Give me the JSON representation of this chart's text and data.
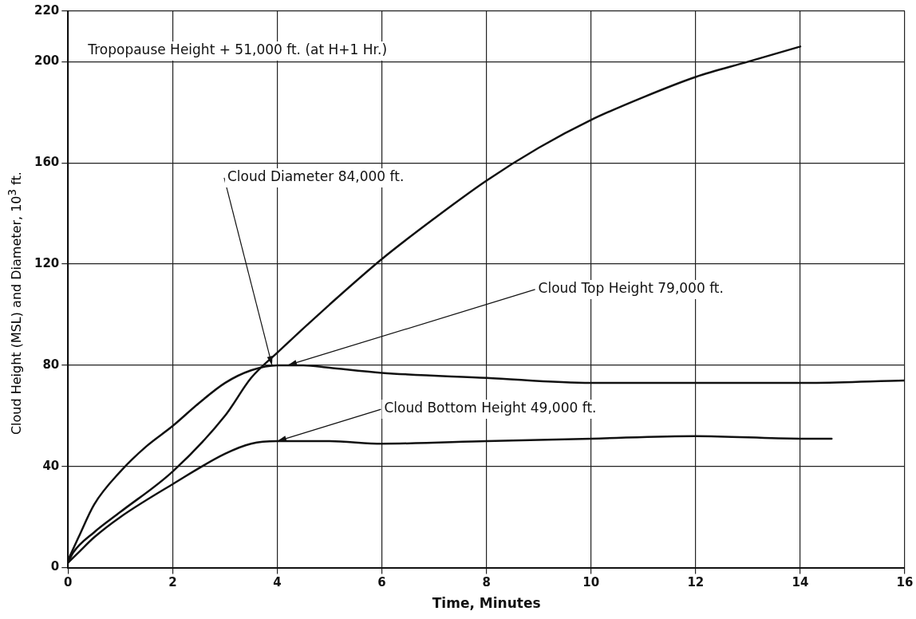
{
  "chart_data": {
    "type": "line",
    "xlabel": "Time, Minutes",
    "ylabel": "Cloud Height (MSL) and Diameter, 10$^{3}$ ft.",
    "xlim": [
      0,
      16
    ],
    "xticks": [
      0,
      2,
      4,
      6,
      8,
      10,
      12,
      14,
      16
    ],
    "ylim": [
      0,
      220
    ],
    "yticks": [
      0,
      40,
      80,
      120,
      160,
      200,
      220
    ],
    "grid": true,
    "legend": false,
    "marker": "none",
    "line_style": "solid",
    "series": [
      {
        "color": "#111111",
        "x": [
          0,
          0.1,
          0.5,
          1,
          2,
          3,
          3.5,
          4,
          5,
          6,
          7,
          8,
          9,
          10,
          11,
          12,
          13,
          14
        ],
        "values": [
          2,
          6,
          14,
          22,
          38,
          60,
          75,
          85,
          104,
          122,
          138,
          153,
          166,
          177,
          186,
          194,
          200,
          206
        ]
      },
      {
        "color": "#111111",
        "x": [
          0,
          0.2,
          0.5,
          1,
          1.5,
          2,
          2.5,
          3,
          3.5,
          4,
          4.5,
          5,
          6,
          8,
          10,
          12,
          14,
          16
        ],
        "values": [
          3,
          12,
          25,
          38,
          48,
          56,
          65,
          73,
          78,
          80,
          80,
          79,
          77,
          75,
          73,
          73,
          73,
          74
        ]
      },
      {
        "color": "#111111",
        "x": [
          0,
          0.2,
          0.5,
          1,
          2,
          3,
          3.5,
          4,
          5,
          6,
          8,
          10,
          12,
          14,
          14.6
        ],
        "values": [
          2,
          6,
          12,
          20,
          33,
          45,
          49,
          50,
          50,
          49,
          50,
          51,
          52,
          51,
          51
        ]
      }
    ],
    "annotations": [
      "Tropopause Height + 51,000 ft. (at H+1 Hr.)",
      {
        "text": "Cloud Diameter 84,000 ft.",
        "x": 3.9,
        "y": 80
      },
      {
        "text": "Cloud Top Height 79,000 ft.",
        "x": 4.2,
        "y": 80
      },
      {
        "text": "Cloud Bottom Height 49,000 ft.",
        "x": 4,
        "y": 50
      }
    ]
  }
}
